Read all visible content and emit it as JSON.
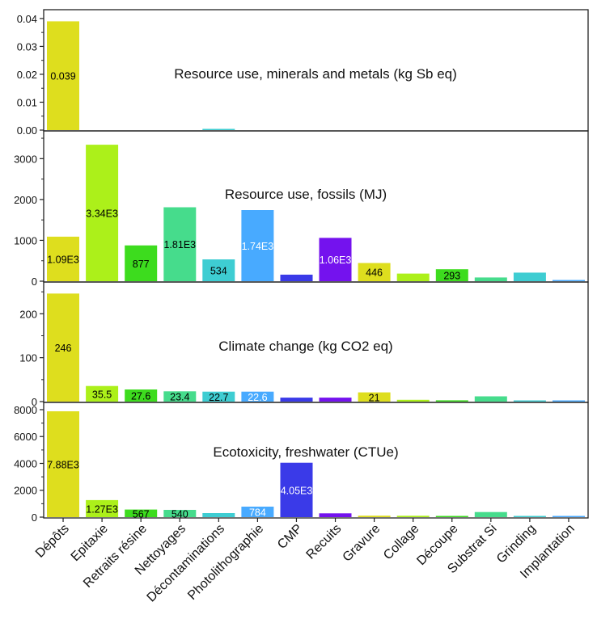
{
  "chart_data": [
    {
      "type": "bar",
      "title": "Resource use, minerals and metals (kg Sb eq)",
      "categories": [
        "Dépôts",
        "Epitaxie",
        "Retraits résine",
        "Nettoyages",
        "Décontaminations",
        "Photolithographie",
        "CMP",
        "Recuits",
        "Gravure",
        "Collage",
        "Découpe",
        "Substrat Si",
        "Grinding",
        "Implantation"
      ],
      "values": [
        0.039,
        0,
        0,
        0,
        0.0003,
        0,
        0,
        0,
        0,
        0,
        0,
        0,
        0,
        0
      ],
      "data_labels": [
        "0.039",
        "",
        "",
        "",
        "",
        "",
        "",
        "",
        "",
        "",
        "",
        "",
        "",
        ""
      ],
      "ylim": [
        0,
        0.042
      ],
      "yticks": [
        "0.00",
        "0.01",
        "0.02",
        "0.03",
        "0.04"
      ],
      "ytick_values": [
        0,
        0.01,
        0.02,
        0.03,
        0.04
      ]
    },
    {
      "type": "bar",
      "title": "Resource use, fossils (MJ)",
      "categories": [
        "Dépôts",
        "Epitaxie",
        "Retraits résine",
        "Nettoyages",
        "Décontaminations",
        "Photolithographie",
        "CMP",
        "Recuits",
        "Gravure",
        "Collage",
        "Découpe",
        "Substrat Si",
        "Grinding",
        "Implantation"
      ],
      "values": [
        1090,
        3340,
        877,
        1810,
        534,
        1740,
        160,
        1060,
        446,
        185,
        293,
        90,
        210,
        25
      ],
      "data_labels": [
        "1.09E3",
        "3.34E3",
        "877",
        "1.81E3",
        "534",
        "1.74E3",
        "",
        "1.06E3",
        "446",
        "",
        "293",
        "",
        "",
        ""
      ],
      "ylim": [
        0,
        3600
      ],
      "yticks": [
        "0",
        "1000",
        "2000",
        "3000"
      ],
      "ytick_values": [
        0,
        1000,
        2000,
        3000
      ]
    },
    {
      "type": "bar",
      "title": "Climate change (kg CO2 eq)",
      "categories": [
        "Dépôts",
        "Epitaxie",
        "Retraits résine",
        "Nettoyages",
        "Décontaminations",
        "Photolithographie",
        "CMP",
        "Recuits",
        "Gravure",
        "Collage",
        "Découpe",
        "Substrat Si",
        "Grinding",
        "Implantation"
      ],
      "values": [
        246,
        35.5,
        27.6,
        23.4,
        22.7,
        22.6,
        9,
        9,
        21,
        4,
        3,
        12,
        2,
        1
      ],
      "data_labels": [
        "246",
        "35.5",
        "27.6",
        "23.4",
        "22.7",
        "22.6",
        "",
        "",
        "21",
        "",
        "",
        "",
        "",
        ""
      ],
      "ylim": [
        0,
        265
      ],
      "yticks": [
        "0",
        "100",
        "200"
      ],
      "ytick_values": [
        0,
        100,
        200
      ]
    },
    {
      "type": "bar",
      "title": "Ecotoxicity, freshwater (CTUe)",
      "categories": [
        "Dépôts",
        "Epitaxie",
        "Retraits résine",
        "Nettoyages",
        "Décontaminations",
        "Photolithographie",
        "CMP",
        "Recuits",
        "Gravure",
        "Collage",
        "Découpe",
        "Substrat Si",
        "Grinding",
        "Implantation"
      ],
      "values": [
        7880,
        1270,
        567,
        540,
        300,
        784,
        4050,
        280,
        110,
        100,
        60,
        380,
        45,
        15
      ],
      "data_labels": [
        "7.88E3",
        "1.27E3",
        "567",
        "540",
        "",
        "784",
        "4.05E3",
        "",
        "",
        "",
        "",
        "",
        "",
        ""
      ],
      "ylim": [
        0,
        8300
      ],
      "yticks": [
        "0",
        "2000",
        "4000",
        "6000",
        "8000"
      ],
      "ytick_values": [
        0,
        2000,
        4000,
        6000,
        8000
      ]
    }
  ],
  "colors": [
    "#dede1e",
    "#acf01a",
    "#3ddc1e",
    "#46dc8c",
    "#3ecdd2",
    "#48aaff",
    "#3a3ae8",
    "#7412ee",
    "#dede1e",
    "#acf01a",
    "#3ddc1e",
    "#46dc8c",
    "#3ecdd2",
    "#48aaff"
  ],
  "label_colors": [
    "#000000",
    "#000000",
    "#000000",
    "#000000",
    "#000000",
    "#ffffff",
    "#ffffff",
    "#ffffff",
    "#000000",
    "#000000",
    "#000000",
    "#000000",
    "#000000",
    "#ffffff"
  ]
}
